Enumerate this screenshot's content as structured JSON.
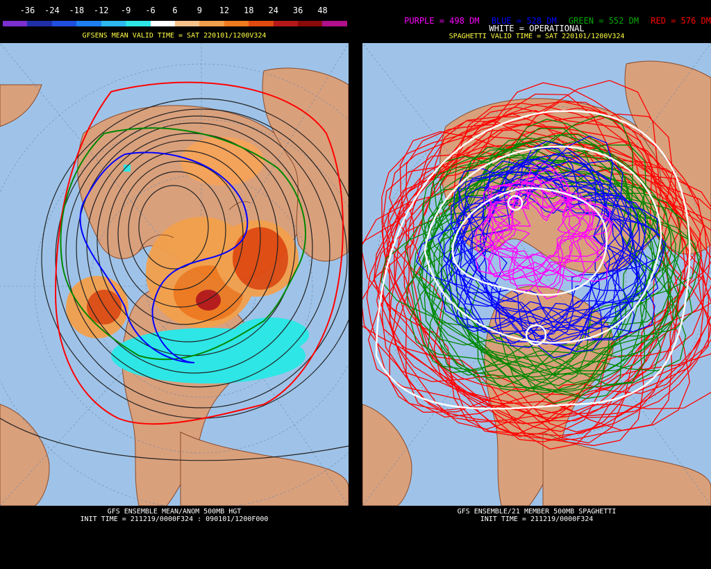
{
  "left": {
    "colorbar": {
      "labels": [
        "-36",
        "-24",
        "-18",
        "-12",
        "-9",
        "-6",
        "6",
        "9",
        "12",
        "18",
        "24",
        "36",
        "48"
      ],
      "colors": [
        "#7b2fd0",
        "#1f2fa8",
        "#1f4fe0",
        "#1e7ff0",
        "#2eb8f0",
        "#2ee6e6",
        "#ffffff",
        "#f6c38a",
        "#f3a04c",
        "#ef7a1f",
        "#e04a10",
        "#b41818",
        "#8a0a0a",
        "#b0108a"
      ]
    },
    "header": {
      "title": "GFSENS MEAN VALID TIME = SAT 220101/1200V324"
    },
    "footer": {
      "line1": "GFS ENSEMBLE MEAN/ANOM 500MB HGT",
      "line2": "INIT TIME = 211219/0000F324 : 090101/1200F000"
    }
  },
  "right": {
    "legend": {
      "purple": "PURPLE = 498 DM",
      "blue": "BLUE = 528 DM",
      "green": "GREEN = 552 DM",
      "red": "RED = 576 DM",
      "white": "WHITE = OPERATIONAL"
    },
    "header": {
      "title": "SPAGHETTI VALID TIME = SAT 220101/1200V324"
    },
    "footer": {
      "line1": "GFS ENSEMBLE/21 MEMBER 500MB SPAGHETTI",
      "line2": "INIT TIME = 211219/0000F324"
    }
  },
  "colors": {
    "ocean": "#9fc3e8",
    "land": "#d9a07c",
    "purple": "#ff00ff",
    "blue": "#0000ff",
    "green": "#008800",
    "red": "#ff0000",
    "white": "#ffffff"
  }
}
